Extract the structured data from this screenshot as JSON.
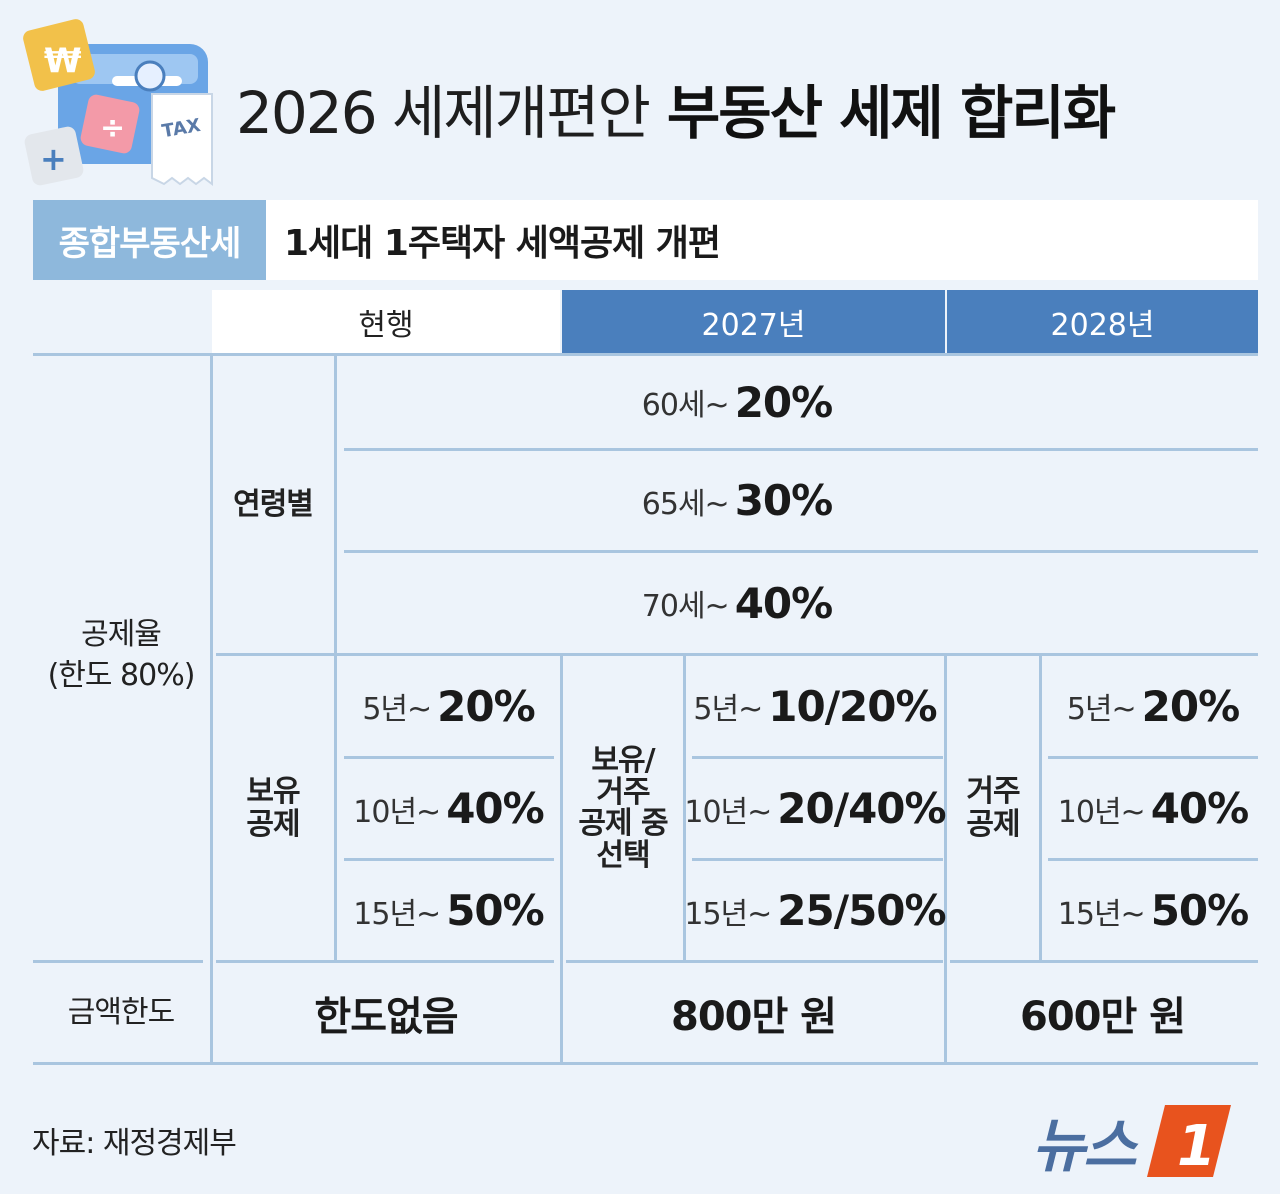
{
  "header": {
    "title_light": "2026 세제개편안",
    "title_bold": "부동산 세제 합리화",
    "icon_text": "TAX"
  },
  "section": {
    "tag": "종합부동산세",
    "title": "1세대 1주택자 세액공제 개편"
  },
  "columns": {
    "current": "현행",
    "y2027": "2027년",
    "y2028": "2028년"
  },
  "rows": {
    "deduction_rate_label": "공제율",
    "deduction_rate_sub": "(한도 80%)",
    "age_label": "연령별",
    "age": [
      {
        "age": "60세~",
        "rate": "20%"
      },
      {
        "age": "65세~",
        "rate": "30%"
      },
      {
        "age": "70세~",
        "rate": "40%"
      }
    ],
    "holding_label_1": "보유",
    "holding_label_2": "공제",
    "current_holding": [
      {
        "period": "5년~",
        "rate": "20%"
      },
      {
        "period": "10년~",
        "rate": "40%"
      },
      {
        "period": "15년~",
        "rate": "50%"
      }
    ],
    "choice_label_1": "보유/",
    "choice_label_2": "거주",
    "choice_label_3": "공제 중",
    "choice_label_4": "선택",
    "y2027_holding": [
      {
        "period": "5년~",
        "rate": "10/20%"
      },
      {
        "period": "10년~",
        "rate": "20/40%"
      },
      {
        "period": "15년~",
        "rate": "25/50%"
      }
    ],
    "residence_label_1": "거주",
    "residence_label_2": "공제",
    "y2028_residence": [
      {
        "period": "5년~",
        "rate": "20%"
      },
      {
        "period": "10년~",
        "rate": "40%"
      },
      {
        "period": "15년~",
        "rate": "50%"
      }
    ],
    "limit_label": "금액한도",
    "limit_current": "한도없음",
    "limit_2027": "800만 원",
    "limit_2028": "600만 원"
  },
  "footer": {
    "source": "자료: 재정경제부",
    "logo_text": "뉴스",
    "logo_badge": "1"
  },
  "colors": {
    "background": "#edf3fa",
    "accent_blue": "#4a7fbd",
    "tag_blue": "#8eb8dc",
    "divider": "#a9c5df",
    "logo_orange": "#e8531e",
    "logo_blue": "#4b6ea0"
  }
}
